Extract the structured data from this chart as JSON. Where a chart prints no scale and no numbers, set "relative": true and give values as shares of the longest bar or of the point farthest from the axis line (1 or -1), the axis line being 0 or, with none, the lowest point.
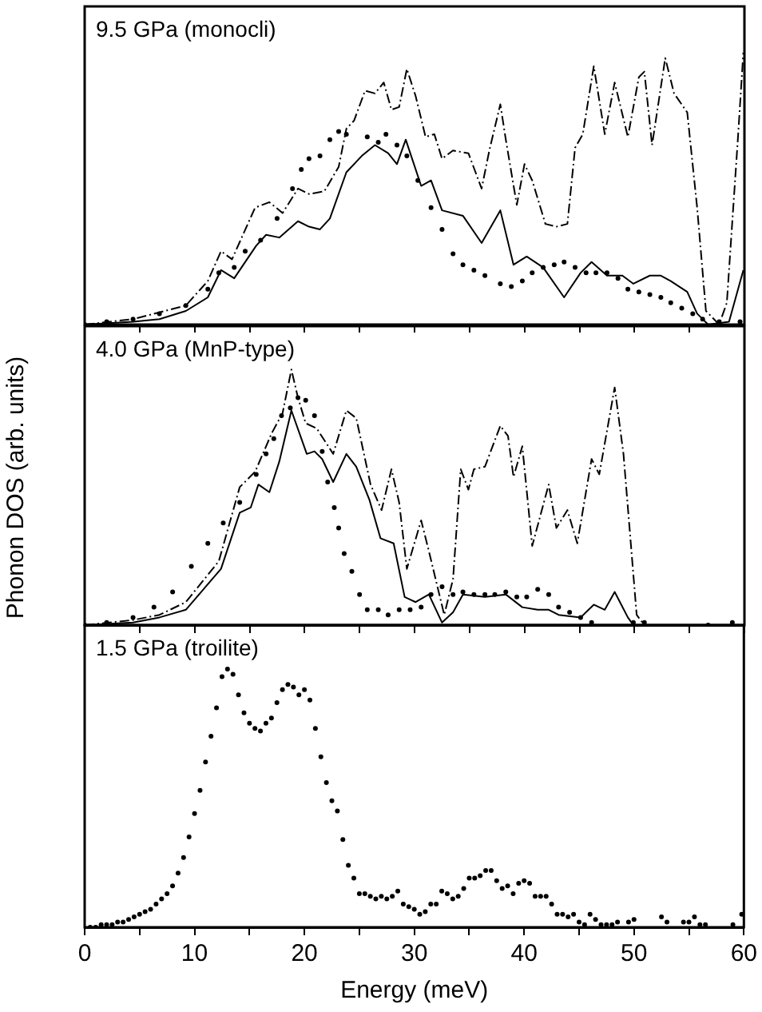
{
  "chart_data": [
    {
      "type": "line",
      "title": "9.5 GPa (monocli)",
      "relative": true,
      "xlim": [
        0,
        60
      ],
      "xticks": [
        0,
        {
          "value": 5,
          "label": null
        },
        10,
        {
          "value": 15,
          "label": null
        },
        20,
        {
          "value": 25,
          "label": null
        },
        30,
        {
          "value": 35,
          "label": null
        },
        40,
        {
          "value": 45,
          "label": null
        },
        50,
        {
          "value": 55,
          "label": null
        },
        60
      ],
      "tick_labels": false,
      "series": [
        {
          "type": "scatter",
          "marker": "circle",
          "color": "#000000",
          "x": [
            0,
            2.0,
            4.4,
            6.8,
            9.2,
            11.2,
            12.2,
            13.6,
            14.6,
            16.0,
            17.5,
            18.9,
            19.7,
            20.4,
            21.4,
            22.3,
            23.1,
            23.8,
            25.7,
            26.7,
            27.4,
            28.4,
            29.3,
            30.3,
            31.5,
            32.5,
            33.5,
            34.4,
            35.4,
            36.4,
            37.8,
            38.8,
            39.8,
            40.7,
            41.7,
            42.7,
            43.6,
            44.6,
            45.6,
            46.5,
            47.5,
            48.5,
            49.4,
            50.4,
            51.4,
            52.4,
            53.3,
            54.3,
            55.3,
            56.2,
            57.7,
            59.6
          ],
          "values": [
            0,
            0.01,
            0.02,
            0.04,
            0.07,
            0.13,
            0.19,
            0.21,
            0.27,
            0.31,
            0.39,
            0.5,
            0.57,
            0.61,
            0.62,
            0.68,
            0.71,
            0.7,
            0.69,
            0.67,
            0.7,
            0.66,
            0.62,
            0.53,
            0.43,
            0.35,
            0.26,
            0.22,
            0.2,
            0.18,
            0.15,
            0.14,
            0.16,
            0.19,
            0.21,
            0.22,
            0.23,
            0.21,
            0.19,
            0.19,
            0.19,
            0.17,
            0.13,
            0.12,
            0.11,
            0.1,
            0.08,
            0.06,
            0.04,
            0.02,
            0.01,
            0.01
          ]
        },
        {
          "type": "line",
          "line_style": "solid",
          "color": "#000000",
          "x": [
            0,
            4.4,
            6.8,
            9.2,
            11.2,
            12.4,
            13.6,
            15.6,
            16.5,
            17.7,
            19.4,
            20.4,
            21.4,
            22.3,
            23.8,
            25.2,
            26.4,
            27.6,
            28.4,
            29.2,
            30.6,
            31.5,
            32.5,
            34.4,
            36.1,
            37.8,
            39.0,
            40.2,
            41.7,
            43.6,
            45.1,
            46.1,
            47.5,
            48.9,
            49.9,
            51.4,
            52.4,
            53.3,
            54.8,
            55.7,
            56.7,
            58.6,
            59.9
          ],
          "values": [
            0,
            0.01,
            0.02,
            0.05,
            0.1,
            0.2,
            0.17,
            0.29,
            0.33,
            0.32,
            0.38,
            0.36,
            0.35,
            0.39,
            0.56,
            0.62,
            0.66,
            0.63,
            0.59,
            0.68,
            0.51,
            0.53,
            0.42,
            0.4,
            0.3,
            0.42,
            0.22,
            0.25,
            0.21,
            0.1,
            0.19,
            0.23,
            0.18,
            0.18,
            0.15,
            0.18,
            0.18,
            0.16,
            0.12,
            0.04,
            0,
            0.01,
            0.2
          ]
        },
        {
          "type": "line",
          "line_style": "dashed",
          "color": "#000000",
          "x": [
            0,
            4.4,
            9.2,
            11.2,
            12.4,
            13.4,
            15.5,
            16.8,
            18.0,
            19.4,
            20.4,
            21.8,
            23.1,
            23.8,
            24.5,
            25.5,
            26.4,
            27.2,
            27.9,
            28.6,
            29.3,
            30.1,
            31.0,
            31.8,
            32.5,
            33.5,
            34.9,
            36.1,
            36.8,
            37.8,
            38.3,
            39.3,
            40.0,
            40.7,
            41.9,
            42.9,
            43.9,
            44.6,
            45.3,
            46.3,
            47.3,
            48.2,
            49.4,
            50.4,
            50.9,
            51.6,
            52.8,
            53.6,
            54.8,
            55.7,
            56.5,
            57.7,
            58.4,
            59.4,
            59.9
          ],
          "values": [
            0,
            0.02,
            0.07,
            0.16,
            0.27,
            0.24,
            0.43,
            0.45,
            0.41,
            0.5,
            0.48,
            0.49,
            0.58,
            0.72,
            0.75,
            0.86,
            0.85,
            0.89,
            0.79,
            0.8,
            0.94,
            0.84,
            0.69,
            0.7,
            0.61,
            0.64,
            0.63,
            0.5,
            0.64,
            0.81,
            0.68,
            0.44,
            0.59,
            0.53,
            0.37,
            0.36,
            0.37,
            0.65,
            0.7,
            0.95,
            0.7,
            0.89,
            0.69,
            0.91,
            0.93,
            0.66,
            0.98,
            0.85,
            0.78,
            0.43,
            0.05,
            0,
            0.08,
            0.68,
            1.0
          ]
        }
      ]
    },
    {
      "type": "line",
      "title": "4.0 GPa (MnP-type)",
      "ylabel": "Phonon DOS (arb. units)",
      "relative": true,
      "xlim": [
        0,
        60
      ],
      "xticks": [
        0,
        {
          "value": 5,
          "label": null
        },
        10,
        {
          "value": 15,
          "label": null
        },
        20,
        {
          "value": 25,
          "label": null
        },
        30,
        {
          "value": 35,
          "label": null
        },
        40,
        {
          "value": 45,
          "label": null
        },
        50,
        {
          "value": 55,
          "label": null
        },
        60
      ],
      "tick_labels": false,
      "series": [
        {
          "type": "scatter",
          "marker": "circle",
          "color": "#000000",
          "x": [
            0,
            2.0,
            4.4,
            6.3,
            8.0,
            9.7,
            11.2,
            12.6,
            14.1,
            15.6,
            16.5,
            17.2,
            17.9,
            18.7,
            19.4,
            20.1,
            20.9,
            21.6,
            22.1,
            22.7,
            23.1,
            23.6,
            24.3,
            25.0,
            25.7,
            26.7,
            27.6,
            28.6,
            29.6,
            30.6,
            31.5,
            32.5,
            33.5,
            34.4,
            35.4,
            36.4,
            37.3,
            38.3,
            39.3,
            40.2,
            41.2,
            42.2,
            43.1,
            44.1,
            45.1,
            46.1,
            49.9,
            50.9,
            56.7,
            58.9
          ],
          "values": [
            0,
            0.01,
            0.03,
            0.07,
            0.13,
            0.23,
            0.32,
            0.4,
            0.48,
            0.59,
            0.67,
            0.73,
            0.82,
            0.85,
            0.89,
            0.88,
            0.82,
            0.68,
            0.56,
            0.46,
            0.38,
            0.28,
            0.21,
            0.12,
            0.06,
            0.06,
            0.04,
            0.06,
            0.06,
            0.07,
            0.12,
            0.15,
            0.12,
            0.13,
            0.12,
            0.12,
            0.12,
            0.13,
            0.11,
            0.11,
            0.14,
            0.12,
            0.07,
            0.05,
            0.03,
            0.01,
            0.01,
            0.01,
            0,
            0.01
          ]
        },
        {
          "type": "line",
          "line_style": "solid",
          "color": "#000000",
          "x": [
            0,
            4.4,
            6.8,
            9.2,
            12.4,
            14.1,
            15.1,
            15.8,
            16.8,
            17.7,
            18.8,
            20.2,
            20.9,
            21.6,
            22.6,
            23.8,
            24.7,
            25.9,
            26.9,
            28.1,
            29.1,
            30.1,
            31.3,
            32.5,
            33.5,
            34.4,
            36.4,
            38.3,
            39.8,
            41.2,
            42.2,
            43.1,
            45.1,
            46.3,
            47.3,
            48.2,
            49.4,
            49.9,
            51.4
          ],
          "values": [
            0,
            0.01,
            0.03,
            0.06,
            0.22,
            0.44,
            0.46,
            0.55,
            0.52,
            0.64,
            0.84,
            0.67,
            0.68,
            0.65,
            0.56,
            0.67,
            0.62,
            0.49,
            0.34,
            0.32,
            0.11,
            0.09,
            0.12,
            0.01,
            0.05,
            0.12,
            0.11,
            0.12,
            0.07,
            0.06,
            0.06,
            0.04,
            0.03,
            0.08,
            0.06,
            0.13,
            0.03,
            0,
            0
          ]
        },
        {
          "type": "line",
          "line_style": "dashed",
          "color": "#000000",
          "x": [
            0,
            4.4,
            6.8,
            9.2,
            12.2,
            14.1,
            15.5,
            17.0,
            18.0,
            18.8,
            19.4,
            20.1,
            21.1,
            22.6,
            23.8,
            24.7,
            26.0,
            27.0,
            27.9,
            28.6,
            29.3,
            30.6,
            31.3,
            32.7,
            33.5,
            34.2,
            34.9,
            35.4,
            36.4,
            37.8,
            38.5,
            39.0,
            39.8,
            40.7,
            42.2,
            42.9,
            43.9,
            44.8,
            46.1,
            46.8,
            48.2,
            49.0,
            50.2,
            50.9,
            59.9
          ],
          "values": [
            0,
            0.02,
            0.04,
            0.09,
            0.25,
            0.54,
            0.6,
            0.75,
            0.83,
            1.0,
            0.89,
            0.79,
            0.77,
            0.67,
            0.84,
            0.81,
            0.55,
            0.45,
            0.61,
            0.48,
            0.22,
            0.41,
            0.29,
            0.04,
            0.18,
            0.61,
            0.53,
            0.61,
            0.62,
            0.78,
            0.74,
            0.58,
            0.7,
            0.31,
            0.55,
            0.38,
            0.45,
            0.32,
            0.65,
            0.59,
            0.93,
            0.67,
            0.04,
            0,
            0
          ]
        }
      ]
    },
    {
      "type": "line",
      "title": "1.5 GPa (troilite)",
      "xlabel": "Energy (meV)",
      "relative": true,
      "xlim": [
        0,
        60
      ],
      "xticks": [
        0,
        {
          "value": 5,
          "label": null
        },
        10,
        {
          "value": 15,
          "label": null
        },
        20,
        {
          "value": 25,
          "label": null
        },
        30,
        {
          "value": 35,
          "label": null
        },
        40,
        {
          "value": 45,
          "label": null
        },
        50,
        {
          "value": 55,
          "label": null
        },
        60
      ],
      "series": [
        {
          "type": "scatter",
          "marker": "circle",
          "color": "#000000",
          "x": [
            0.5,
            1.0,
            1.5,
            2.0,
            2.5,
            3.0,
            3.5,
            4.0,
            4.5,
            5.0,
            5.5,
            6.0,
            6.5,
            7.0,
            7.5,
            8.0,
            8.5,
            9.0,
            9.5,
            10.0,
            10.5,
            11.0,
            11.5,
            12.0,
            12.5,
            13.0,
            13.5,
            14.0,
            14.5,
            15.0,
            15.5,
            16.0,
            16.5,
            17.0,
            17.5,
            18.0,
            18.5,
            19.0,
            19.5,
            20.0,
            20.5,
            21.0,
            21.5,
            22.0,
            22.5,
            23.0,
            23.5,
            24.0,
            24.5,
            25.0,
            25.5,
            26.0,
            26.5,
            27.0,
            27.5,
            28.0,
            28.5,
            29.0,
            29.5,
            30.0,
            30.5,
            31.0,
            31.5,
            32.0,
            32.5,
            33.0,
            33.5,
            34.0,
            34.5,
            35.0,
            35.5,
            36.0,
            36.5,
            37.0,
            37.5,
            38.0,
            38.5,
            39.0,
            39.5,
            40.0,
            40.5,
            41.0,
            41.5,
            42.0,
            42.5,
            43.0,
            43.5,
            44.0,
            44.5,
            45.0,
            45.5,
            46.0,
            46.5,
            47.0,
            47.5,
            48.0,
            48.5,
            49.5,
            50.0,
            52.5,
            53.0,
            54.5,
            55.0,
            55.5,
            56.0,
            56.5,
            59.0,
            59.8
          ],
          "values": [
            0,
            0,
            0.01,
            0.01,
            0.01,
            0.02,
            0.02,
            0.03,
            0.04,
            0.05,
            0.06,
            0.07,
            0.09,
            0.11,
            0.13,
            0.16,
            0.21,
            0.27,
            0.35,
            0.44,
            0.53,
            0.64,
            0.74,
            0.85,
            0.97,
            1.0,
            0.98,
            0.9,
            0.83,
            0.79,
            0.77,
            0.76,
            0.79,
            0.81,
            0.87,
            0.92,
            0.94,
            0.93,
            0.9,
            0.92,
            0.88,
            0.77,
            0.66,
            0.56,
            0.49,
            0.45,
            0.34,
            0.24,
            0.19,
            0.13,
            0.13,
            0.12,
            0.11,
            0.12,
            0.11,
            0.12,
            0.14,
            0.09,
            0.08,
            0.07,
            0.05,
            0.06,
            0.09,
            0.09,
            0.14,
            0.13,
            0.11,
            0.12,
            0.15,
            0.19,
            0.19,
            0.2,
            0.22,
            0.22,
            0.18,
            0.15,
            0.16,
            0.13,
            0.17,
            0.18,
            0.17,
            0.12,
            0.12,
            0.12,
            0.09,
            0.05,
            0.05,
            0.04,
            0.05,
            0.02,
            0.01,
            0.05,
            0.03,
            0.01,
            0.01,
            0.01,
            0.02,
            0.02,
            0.03,
            0.04,
            0.02,
            0.02,
            0.02,
            0.04,
            0.01,
            0.01,
            0.01,
            0.05
          ]
        }
      ]
    }
  ]
}
